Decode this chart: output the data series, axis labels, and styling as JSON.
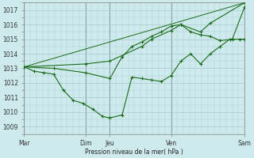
{
  "xlabel": "Pression niveau de la mer( hPa )",
  "bg_color": "#ceeaed",
  "grid_color": "#aacccc",
  "grid_color_dark": "#88aaaa",
  "line_color": "#1a6b1a",
  "ylim": [
    1008.5,
    1017.5
  ],
  "xlim": [
    0,
    9.0
  ],
  "ytick_values": [
    1009,
    1010,
    1011,
    1012,
    1013,
    1014,
    1015,
    1016,
    1017
  ],
  "xtick_positions": [
    0.0,
    2.5,
    3.5,
    6.0,
    9.0
  ],
  "xtick_labels": [
    "Mar",
    "Dim",
    "Jeu",
    "Ven",
    "Sam"
  ],
  "day_vlines": [
    0.0,
    2.5,
    3.5,
    6.0,
    9.0
  ],
  "line1_x": [
    0,
    0.4,
    0.8,
    1.2,
    1.6,
    2.0,
    2.4,
    2.8,
    3.2,
    3.5,
    4.0,
    4.4,
    4.8,
    5.2,
    5.6,
    6.0,
    6.4,
    6.8,
    7.2,
    7.6,
    8.0,
    8.4,
    8.8,
    9.0
  ],
  "line1_y": [
    1013.1,
    1012.8,
    1012.7,
    1012.6,
    1011.5,
    1010.8,
    1010.6,
    1010.2,
    1009.7,
    1009.6,
    1009.8,
    1012.4,
    1012.3,
    1012.2,
    1012.1,
    1012.5,
    1013.5,
    1014.0,
    1013.3,
    1014.0,
    1014.5,
    1015.0,
    1015.0,
    1015.0
  ],
  "line2_x": [
    0,
    1.2,
    2.5,
    3.5,
    4.0,
    4.4,
    4.8,
    5.2,
    5.6,
    6.0,
    6.4,
    6.8,
    7.2,
    7.6,
    8.0,
    8.5,
    9.0
  ],
  "line2_y": [
    1013.1,
    1013.0,
    1012.7,
    1012.3,
    1013.8,
    1014.5,
    1014.8,
    1015.2,
    1015.5,
    1015.9,
    1016.0,
    1015.5,
    1015.3,
    1015.2,
    1014.9,
    1015.0,
    1017.2
  ],
  "line3_x": [
    0,
    2.5,
    3.5,
    4.8,
    5.2,
    6.0,
    6.4,
    7.2,
    7.6,
    9.0
  ],
  "line3_y": [
    1013.1,
    1013.3,
    1013.5,
    1014.5,
    1015.0,
    1015.6,
    1016.0,
    1015.5,
    1016.1,
    1017.5
  ],
  "line4_x": [
    0,
    9.0
  ],
  "line4_y": [
    1013.1,
    1017.5
  ],
  "label_fontsize": 5.5,
  "tick_fontsize": 5.5
}
